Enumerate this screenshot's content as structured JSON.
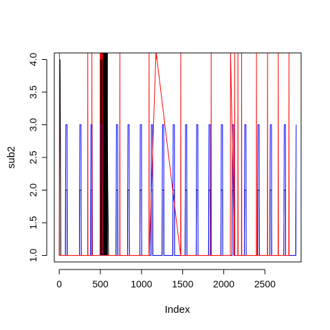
{
  "chart_data": {
    "type": "line",
    "title": "",
    "xlabel": "Index",
    "ylabel": "sub2",
    "xlim": [
      -60,
      2940
    ],
    "ylim": [
      0.9,
      4.1
    ],
    "x_ticks": [
      0,
      500,
      1000,
      1500,
      2000,
      2500
    ],
    "x_tick_labels": [
      "0",
      "500",
      "1000",
      "1500",
      "2000",
      "2500"
    ],
    "y_ticks": [
      1.0,
      1.5,
      2.0,
      2.5,
      3.0,
      3.5,
      4.0
    ],
    "y_tick_labels": [
      "1.0",
      "1.5",
      "2.0",
      "2.5",
      "3.0",
      "3.5",
      "4.0"
    ],
    "grid": false,
    "series": [
      {
        "color": "#000000",
        "style": "line",
        "points": [
          [
            0,
            1
          ],
          [
            10,
            4
          ],
          [
            20,
            1
          ],
          [
            75,
            1
          ],
          [
            77,
            2
          ],
          [
            95,
            2
          ],
          [
            97,
            1
          ],
          [
            245,
            1
          ],
          [
            247,
            2
          ],
          [
            265,
            2
          ],
          [
            267,
            1
          ],
          [
            380,
            1
          ],
          [
            382,
            2
          ],
          [
            400,
            2
          ],
          [
            402,
            1
          ],
          [
            498,
            1
          ],
          [
            500,
            4
          ],
          [
            505,
            2
          ],
          [
            510,
            4
          ],
          [
            515,
            2
          ],
          [
            520,
            4
          ],
          [
            525,
            2
          ],
          [
            530,
            4
          ],
          [
            535,
            2
          ],
          [
            540,
            4
          ],
          [
            545,
            2
          ],
          [
            550,
            4
          ],
          [
            555,
            2
          ],
          [
            560,
            4
          ],
          [
            565,
            2
          ],
          [
            570,
            4
          ],
          [
            575,
            2
          ],
          [
            580,
            4
          ],
          [
            590,
            2
          ],
          [
            600,
            1
          ],
          [
            690,
            1
          ],
          [
            692,
            2
          ],
          [
            710,
            2
          ],
          [
            712,
            1
          ],
          [
            830,
            1
          ],
          [
            832,
            2
          ],
          [
            850,
            2
          ],
          [
            852,
            1
          ],
          [
            980,
            1
          ],
          [
            982,
            2
          ],
          [
            1000,
            2
          ],
          [
            1002,
            1
          ],
          [
            1115,
            1
          ],
          [
            1117,
            2
          ],
          [
            1135,
            2
          ],
          [
            1137,
            1
          ],
          [
            1250,
            1
          ],
          [
            1252,
            2
          ],
          [
            1270,
            2
          ],
          [
            1272,
            1
          ],
          [
            1380,
            1
          ],
          [
            1382,
            2
          ],
          [
            1400,
            2
          ],
          [
            1402,
            1
          ],
          [
            1530,
            1
          ],
          [
            1532,
            2
          ],
          [
            1550,
            2
          ],
          [
            1552,
            1
          ],
          [
            1665,
            1
          ],
          [
            1667,
            2
          ],
          [
            1685,
            2
          ],
          [
            1687,
            1
          ],
          [
            1815,
            1
          ],
          [
            1817,
            2
          ],
          [
            1835,
            2
          ],
          [
            1837,
            1
          ],
          [
            1965,
            1
          ],
          [
            1967,
            2
          ],
          [
            1985,
            2
          ],
          [
            1987,
            1
          ],
          [
            2100,
            1
          ],
          [
            2102,
            2
          ],
          [
            2120,
            2
          ],
          [
            2122,
            1
          ],
          [
            2250,
            1
          ],
          [
            2252,
            2
          ],
          [
            2270,
            2
          ],
          [
            2272,
            1
          ],
          [
            2410,
            1
          ],
          [
            2412,
            2
          ],
          [
            2430,
            2
          ],
          [
            2432,
            1
          ],
          [
            2560,
            1
          ],
          [
            2562,
            2
          ],
          [
            2580,
            2
          ],
          [
            2582,
            1
          ],
          [
            2730,
            1
          ],
          [
            2732,
            2
          ],
          [
            2750,
            2
          ],
          [
            2752,
            1
          ],
          [
            2875,
            1
          ],
          [
            2877,
            2
          ]
        ]
      },
      {
        "color": "#0000ff",
        "style": "line",
        "points": [
          [
            0,
            1
          ],
          [
            75,
            1
          ],
          [
            77,
            2
          ],
          [
            80,
            3
          ],
          [
            95,
            3
          ],
          [
            97,
            1
          ],
          [
            245,
            1
          ],
          [
            247,
            2
          ],
          [
            250,
            3
          ],
          [
            265,
            3
          ],
          [
            267,
            1
          ],
          [
            380,
            1
          ],
          [
            382,
            2
          ],
          [
            385,
            3
          ],
          [
            400,
            3
          ],
          [
            402,
            1
          ],
          [
            495,
            1
          ],
          [
            497,
            2
          ],
          [
            500,
            3
          ],
          [
            515,
            3
          ],
          [
            517,
            1
          ],
          [
            690,
            1
          ],
          [
            692,
            2
          ],
          [
            695,
            3
          ],
          [
            710,
            3
          ],
          [
            712,
            1
          ],
          [
            830,
            1
          ],
          [
            832,
            2
          ],
          [
            835,
            3
          ],
          [
            850,
            3
          ],
          [
            852,
            1
          ],
          [
            980,
            1
          ],
          [
            982,
            2
          ],
          [
            985,
            3
          ],
          [
            1000,
            3
          ],
          [
            1002,
            1
          ],
          [
            1115,
            1
          ],
          [
            1117,
            2
          ],
          [
            1120,
            3
          ],
          [
            1135,
            3
          ],
          [
            1137,
            1
          ],
          [
            1250,
            1
          ],
          [
            1252,
            2
          ],
          [
            1255,
            3
          ],
          [
            1270,
            3
          ],
          [
            1272,
            1
          ],
          [
            1380,
            1
          ],
          [
            1382,
            2
          ],
          [
            1385,
            3
          ],
          [
            1400,
            3
          ],
          [
            1402,
            1
          ],
          [
            1530,
            1
          ],
          [
            1532,
            2
          ],
          [
            1535,
            3
          ],
          [
            1550,
            3
          ],
          [
            1552,
            1
          ],
          [
            1665,
            1
          ],
          [
            1667,
            2
          ],
          [
            1670,
            3
          ],
          [
            1685,
            3
          ],
          [
            1687,
            1
          ],
          [
            1815,
            1
          ],
          [
            1817,
            2
          ],
          [
            1820,
            3
          ],
          [
            1835,
            3
          ],
          [
            1837,
            1
          ],
          [
            1965,
            1
          ],
          [
            1967,
            2
          ],
          [
            1970,
            3
          ],
          [
            1985,
            3
          ],
          [
            1987,
            1
          ],
          [
            2100,
            1
          ],
          [
            2102,
            2
          ],
          [
            2105,
            3
          ],
          [
            2120,
            3
          ],
          [
            2122,
            1
          ],
          [
            2250,
            1
          ],
          [
            2252,
            2
          ],
          [
            2255,
            3
          ],
          [
            2270,
            3
          ],
          [
            2272,
            1
          ],
          [
            2410,
            1
          ],
          [
            2412,
            2
          ],
          [
            2415,
            3
          ],
          [
            2430,
            3
          ],
          [
            2432,
            1
          ],
          [
            2560,
            1
          ],
          [
            2562,
            2
          ],
          [
            2565,
            3
          ],
          [
            2580,
            3
          ],
          [
            2582,
            1
          ],
          [
            2730,
            1
          ],
          [
            2732,
            2
          ],
          [
            2735,
            3
          ],
          [
            2750,
            3
          ],
          [
            2752,
            1
          ],
          [
            2875,
            1
          ],
          [
            2877,
            2
          ],
          [
            2880,
            3
          ]
        ]
      },
      {
        "color": "#ff0000",
        "style": "line",
        "points": [
          [
            0,
            1
          ],
          [
            2,
            4.1
          ],
          [
            4,
            1
          ],
          [
            345,
            1
          ],
          [
            347,
            4.1
          ],
          [
            349,
            1
          ],
          [
            395,
            1
          ],
          [
            397,
            4.1
          ],
          [
            399,
            1
          ],
          [
            495,
            1
          ],
          [
            497,
            4.1
          ],
          [
            500,
            4.0
          ],
          [
            505,
            4.1
          ],
          [
            510,
            4.0
          ],
          [
            515,
            4.1
          ],
          [
            520,
            4.0
          ],
          [
            525,
            4.1
          ],
          [
            530,
            1
          ],
          [
            735,
            1
          ],
          [
            737,
            4.1
          ],
          [
            739,
            1
          ],
          [
            1090,
            1
          ],
          [
            1092,
            4.1
          ],
          [
            1094,
            1
          ],
          [
            1175,
            4.1
          ],
          [
            1177,
            4.0
          ],
          [
            1179,
            4.1
          ],
          [
            1475,
            1
          ],
          [
            1477,
            4.1
          ],
          [
            1479,
            1
          ],
          [
            1845,
            1
          ],
          [
            1847,
            4.1
          ],
          [
            1849,
            1
          ],
          [
            2080,
            1
          ],
          [
            2082,
            4.1
          ],
          [
            2084,
            4.0
          ],
          [
            2130,
            1
          ],
          [
            2132,
            4.1
          ],
          [
            2134,
            1
          ],
          [
            2170,
            1
          ],
          [
            2172,
            4.1
          ],
          [
            2174,
            1
          ],
          [
            2215,
            1
          ],
          [
            2217,
            4.1
          ],
          [
            2219,
            1
          ],
          [
            2395,
            1
          ],
          [
            2397,
            4.1
          ],
          [
            2399,
            1
          ],
          [
            2530,
            1
          ],
          [
            2532,
            4.1
          ],
          [
            2534,
            1
          ],
          [
            2660,
            1
          ],
          [
            2662,
            4.1
          ],
          [
            2664,
            1
          ],
          [
            2790,
            1
          ],
          [
            2792,
            4.1
          ],
          [
            2794,
            1
          ]
        ]
      }
    ],
    "overplot_block": {
      "x_range": [
        498,
        590
      ],
      "y_range": [
        1.0,
        4.1
      ],
      "color": "#000000"
    }
  }
}
